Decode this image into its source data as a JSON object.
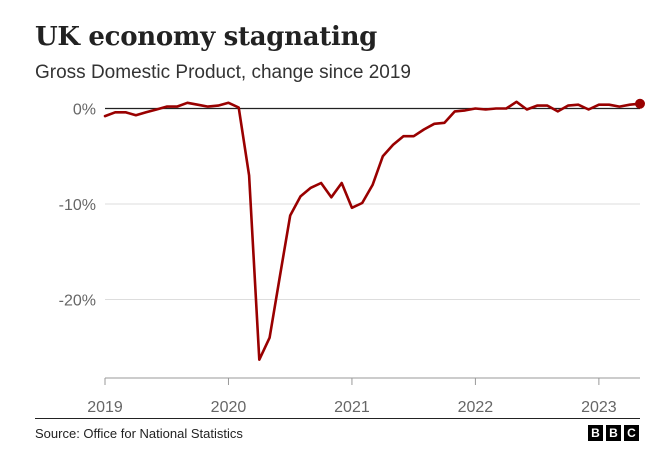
{
  "header": {
    "title": "UK economy stagnating",
    "subtitle": "Gross Domestic Product, change since 2019"
  },
  "footer": {
    "source": "Source: Office for National Statistics",
    "logo_letters": [
      "B",
      "B",
      "C"
    ]
  },
  "colors": {
    "line": "#990000",
    "grid": "#dddddd",
    "zero_line": "#222222",
    "tick_text": "#666666"
  },
  "chart_data": {
    "type": "line",
    "title": "UK economy stagnating",
    "subtitle": "Gross Domestic Product, change since 2019",
    "xlabel": "",
    "ylabel": "",
    "x_ticks": [
      2019,
      2020,
      2021,
      2022,
      2023
    ],
    "x_range": [
      2019.0,
      2023.333
    ],
    "y_ticks": [
      0,
      -10,
      -20
    ],
    "y_tick_labels": [
      "0%",
      "-10%",
      "-20%"
    ],
    "ylim": [
      -27,
      1.5
    ],
    "grid": true,
    "end_marker": true,
    "series": [
      {
        "x": [
          2019.0,
          2019.083,
          2019.167,
          2019.25,
          2019.333,
          2019.417,
          2019.5,
          2019.583,
          2019.667,
          2019.75,
          2019.833,
          2019.917,
          2020.0,
          2020.083,
          2020.167,
          2020.25,
          2020.333,
          2020.417,
          2020.5,
          2020.583,
          2020.667,
          2020.75,
          2020.833,
          2020.917,
          2021.0,
          2021.083,
          2021.167,
          2021.25,
          2021.333,
          2021.417,
          2021.5,
          2021.583,
          2021.667,
          2021.75,
          2021.833,
          2021.917,
          2022.0,
          2022.083,
          2022.167,
          2022.25,
          2022.333,
          2022.417,
          2022.5,
          2022.583,
          2022.667,
          2022.75,
          2022.833,
          2022.917,
          2023.0,
          2023.083,
          2023.167,
          2023.25,
          2023.333
        ],
        "values": [
          -0.8,
          -0.4,
          -0.4,
          -0.7,
          -0.4,
          -0.1,
          0.2,
          0.2,
          0.6,
          0.4,
          0.2,
          0.3,
          0.6,
          0.1,
          -7.0,
          -26.3,
          -24.0,
          -17.5,
          -11.2,
          -9.2,
          -8.3,
          -7.8,
          -9.3,
          -7.8,
          -10.4,
          -9.9,
          -8.0,
          -5.0,
          -3.8,
          -2.9,
          -2.9,
          -2.2,
          -1.6,
          -1.5,
          -0.3,
          -0.2,
          0.0,
          -0.1,
          0.0,
          0.0,
          0.7,
          -0.1,
          0.3,
          0.3,
          -0.3,
          0.3,
          0.4,
          -0.1,
          0.4,
          0.4,
          0.2,
          0.4,
          0.5
        ]
      }
    ]
  }
}
